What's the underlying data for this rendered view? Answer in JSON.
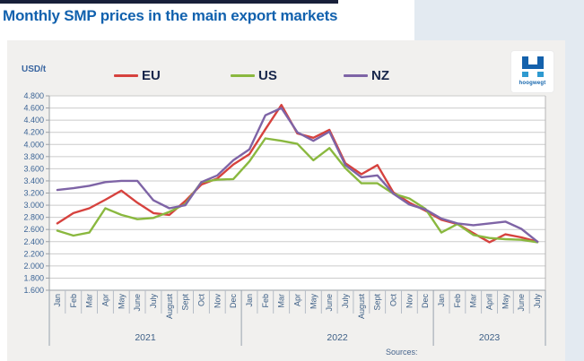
{
  "header": {
    "title": "Monthly SMP prices in the main export markets"
  },
  "panel": {
    "unit_label": "USD/t",
    "sources_label": "Sources:"
  },
  "logo": {
    "text": "hoogwegt"
  },
  "legend": [
    {
      "label": "EU",
      "color": "#d6423e"
    },
    {
      "label": "US",
      "color": "#8ab83f"
    },
    {
      "label": "NZ",
      "color": "#7e64a6"
    }
  ],
  "chart_data": {
    "type": "line",
    "title": "Monthly SMP prices in the main export markets",
    "ylabel": "USD/t",
    "ylim": [
      1600,
      4800
    ],
    "ytick_step": 200,
    "grid": true,
    "legend_position": "top",
    "x_groups": [
      {
        "year": "2021",
        "months": [
          "Jan",
          "Feb",
          "Mar",
          "Apr",
          "May",
          "June",
          "July",
          "August",
          "Sept",
          "Oct",
          "Nov",
          "Dec"
        ]
      },
      {
        "year": "2022",
        "months": [
          "Jan",
          "Feb",
          "Mar",
          "Apr",
          "May",
          "June",
          "July",
          "August",
          "Sept",
          "Oct",
          "Nov",
          "Dec"
        ]
      },
      {
        "year": "2023",
        "months": [
          "Jan",
          "Feb",
          "Mar",
          "April",
          "May",
          "June",
          "July"
        ]
      }
    ],
    "series": [
      {
        "name": "EU",
        "color": "#d6423e",
        "values": [
          2700,
          2870,
          2950,
          3090,
          3240,
          3040,
          2870,
          2840,
          3070,
          3340,
          3440,
          3670,
          3840,
          4250,
          4650,
          4180,
          4110,
          4240,
          3690,
          3510,
          3660,
          3210,
          3040,
          2910,
          2760,
          2690,
          2540,
          2390,
          2520,
          2470,
          2400
        ]
      },
      {
        "name": "US",
        "color": "#8ab83f",
        "values": [
          2580,
          2500,
          2550,
          2950,
          2840,
          2770,
          2790,
          2890,
          3020,
          3380,
          3420,
          3430,
          3720,
          4100,
          4060,
          4010,
          3740,
          3940,
          3610,
          3360,
          3360,
          3190,
          3110,
          2940,
          2550,
          2690,
          2510,
          2460,
          2440,
          2430,
          2390
        ]
      },
      {
        "name": "NZ",
        "color": "#7e64a6",
        "values": [
          3250,
          3280,
          3320,
          3380,
          3400,
          3400,
          3080,
          2950,
          3000,
          3380,
          3490,
          3740,
          3920,
          4480,
          4600,
          4200,
          4060,
          4210,
          3660,
          3460,
          3490,
          3190,
          3010,
          2930,
          2780,
          2700,
          2670,
          2700,
          2730,
          2610,
          2400
        ]
      }
    ]
  }
}
